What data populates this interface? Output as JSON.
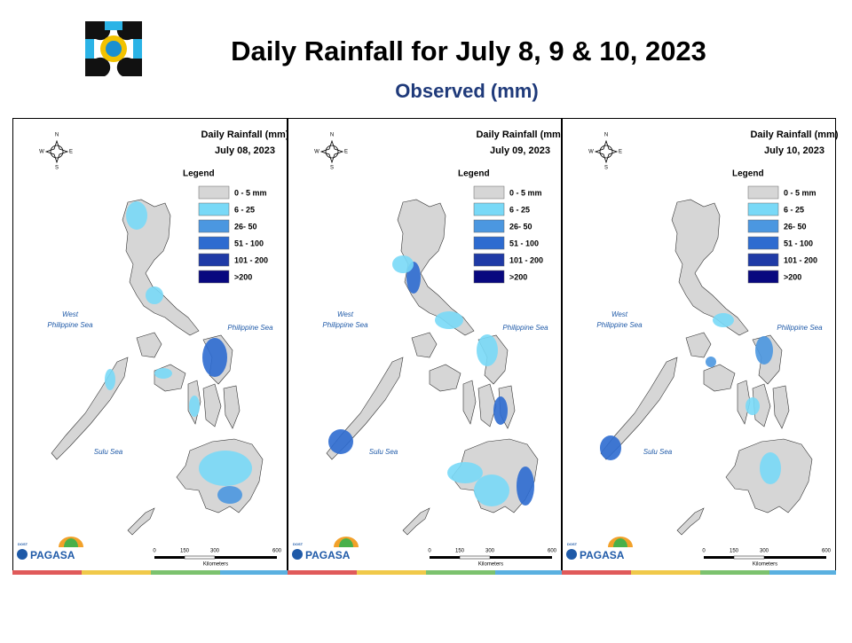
{
  "header": {
    "title": "Daily Rainfall for July 8, 9 & 10, 2023",
    "subtitle": "Observed (mm)"
  },
  "legend": {
    "title": "Legend",
    "items": [
      {
        "label": "0 - 5 mm",
        "color": "#d6d6d6"
      },
      {
        "label": "6 - 25",
        "color": "#79d9f7"
      },
      {
        "label": "26- 50",
        "color": "#4b97e0"
      },
      {
        "label": "51 - 100",
        "color": "#2d6bd0"
      },
      {
        "label": "101 - 200",
        "color": "#1f3aa6"
      },
      {
        "label": ">200",
        "color": "#08087f"
      }
    ]
  },
  "compass": [
    "N",
    "E",
    "S",
    "W"
  ],
  "sea_labels": {
    "west": [
      "West",
      "Philippine Sea"
    ],
    "east": "Philippine Sea",
    "south": "Sulu Sea"
  },
  "scale": {
    "ticks": [
      "0",
      "150",
      "300",
      "600"
    ],
    "unit": "Kilometers"
  },
  "logo": {
    "agency": "DOST",
    "name": "PAGASA"
  },
  "panels": [
    {
      "title": "Daily Rainfall (mm)",
      "date": "July 08, 2023"
    },
    {
      "title": "Daily Rainfall (mm)",
      "date": "July 09, 2023"
    },
    {
      "title": "Daily Rainfall (mm)",
      "date": "July 10, 2023"
    }
  ]
}
